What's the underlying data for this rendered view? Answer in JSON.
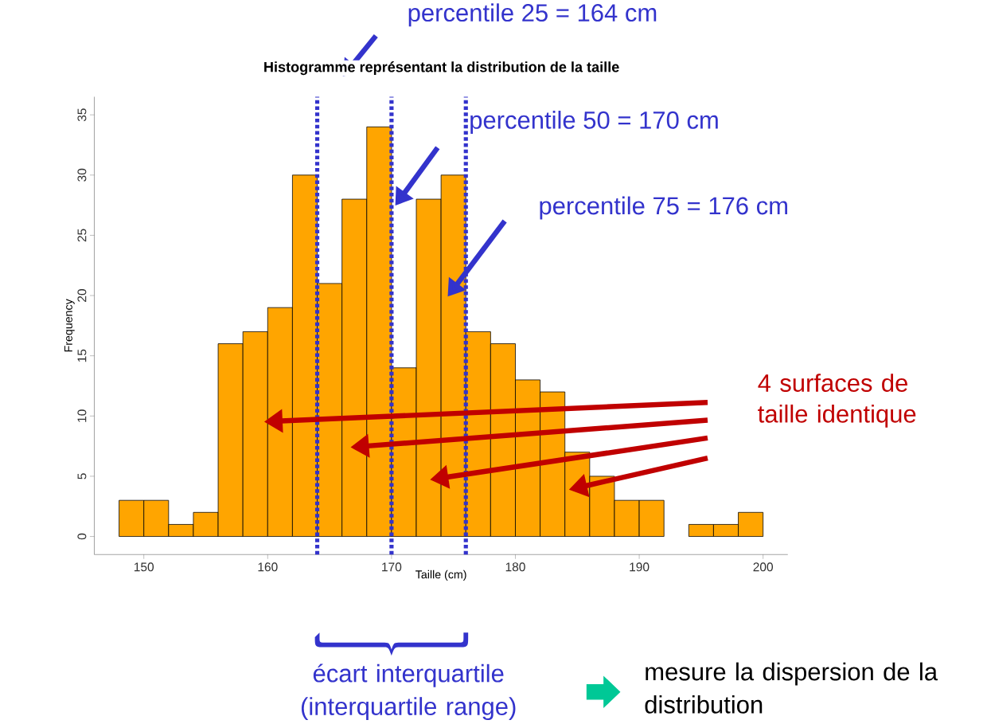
{
  "chart_data": {
    "type": "histogram",
    "title": "Histogramme représentant la distribution de la taille",
    "xlabel": "Taille (cm)",
    "ylabel": "Frequency",
    "bins": [
      148,
      150,
      152,
      154,
      156,
      158,
      160,
      162,
      164,
      166,
      168,
      170,
      172,
      174,
      176,
      178,
      180,
      182,
      184,
      186,
      188,
      190,
      192,
      194,
      196,
      198,
      200
    ],
    "values": [
      3,
      3,
      1,
      2,
      16,
      17,
      19,
      30,
      21,
      28,
      34,
      14,
      28,
      30,
      17,
      16,
      13,
      12,
      7,
      5,
      3,
      3,
      0,
      1,
      1,
      2
    ],
    "color": "#ffa500",
    "xlim": [
      146,
      202
    ],
    "ylim": [
      -1.5,
      36.5
    ],
    "xticks": [
      150,
      160,
      170,
      180,
      190,
      200
    ],
    "yticks": [
      0,
      5,
      10,
      15,
      20,
      25,
      30,
      35
    ],
    "ref_lines": [
      {
        "axis": "x",
        "value": 164,
        "label": "percentile 25 = 164 cm",
        "color": "#3333cc",
        "line_style": "dotted"
      },
      {
        "axis": "x",
        "value": 170,
        "label": "percentile 50 = 170 cm",
        "color": "#3333cc",
        "line_style": "dotted"
      },
      {
        "axis": "x",
        "value": 176,
        "label": "percentile 75 = 176 cm",
        "color": "#3333cc",
        "line_style": "dotted"
      }
    ],
    "annotations": [
      "4 surfaces de taille identique",
      "écart interquartile (interquartile range)",
      "mesure la dispersion de la distribution"
    ]
  }
}
